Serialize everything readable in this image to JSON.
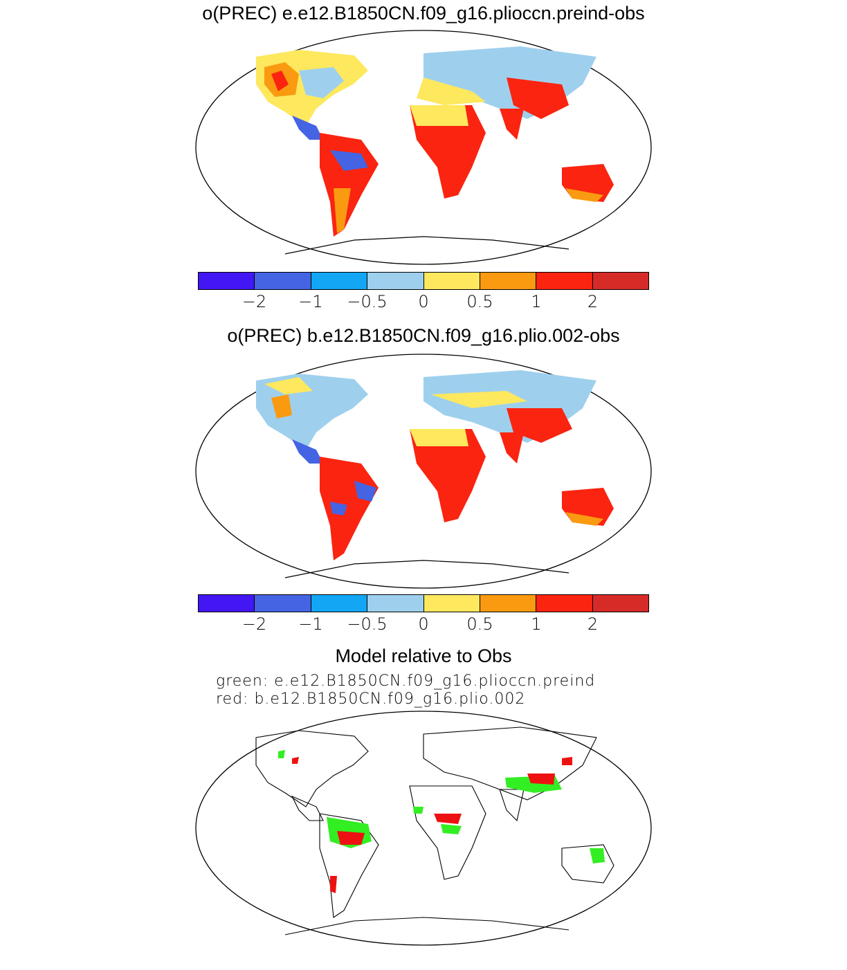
{
  "panel1": {
    "title": "o(PREC) e.e12.B1850CN.f09_g16.plioccn.preind-obs"
  },
  "panel2": {
    "title": "o(PREC) b.e12.B1850CN.f09_g16.plio.002-obs"
  },
  "panel3": {
    "title": "Model relative to Obs",
    "green_label": "green:  e.e12.B1850CN.f09_g16.plioccn.preind",
    "red_label": "red:  b.e12.B1850CN.f09_g16.plio.002"
  },
  "colorbar": {
    "colors": [
      "#4316f4",
      "#4464e4",
      "#12a6f5",
      "#9ed0ee",
      "#fde85e",
      "#fa9a10",
      "#fa2410",
      "#d72b28"
    ],
    "ticks": [
      "−2",
      "−1",
      "−0.5",
      "0",
      "0.5",
      "1",
      "2"
    ]
  },
  "relative_colors": {
    "green": "#33ee22",
    "red": "#ee1111"
  }
}
